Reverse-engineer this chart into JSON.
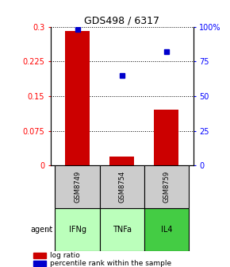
{
  "title": "GDS498 / 6317",
  "samples": [
    "GSM8749",
    "GSM8754",
    "GSM8759"
  ],
  "agents": [
    "IFNg",
    "TNFa",
    "IL4"
  ],
  "log_ratios": [
    0.29,
    0.02,
    0.12
  ],
  "percentile_ranks": [
    98,
    65,
    82
  ],
  "ylim_left": [
    0,
    0.3
  ],
  "ylim_right": [
    0,
    100
  ],
  "yticks_left": [
    0,
    0.075,
    0.15,
    0.225,
    0.3
  ],
  "yticks_right": [
    0,
    25,
    50,
    75,
    100
  ],
  "ytick_labels_left": [
    "0",
    "0.075",
    "0.15",
    "0.225",
    "0.3"
  ],
  "ytick_labels_right": [
    "0",
    "25",
    "50",
    "75",
    "100%"
  ],
  "bar_color": "#cc0000",
  "dot_color": "#0000cc",
  "sample_box_color": "#cccccc",
  "agent_colors": [
    "#bbffbb",
    "#bbffbb",
    "#44cc44"
  ],
  "bar_width": 0.55,
  "x_positions": [
    0,
    1,
    2
  ],
  "background_color": "#ffffff",
  "legend_square_red": "#cc0000",
  "legend_square_blue": "#0000cc"
}
